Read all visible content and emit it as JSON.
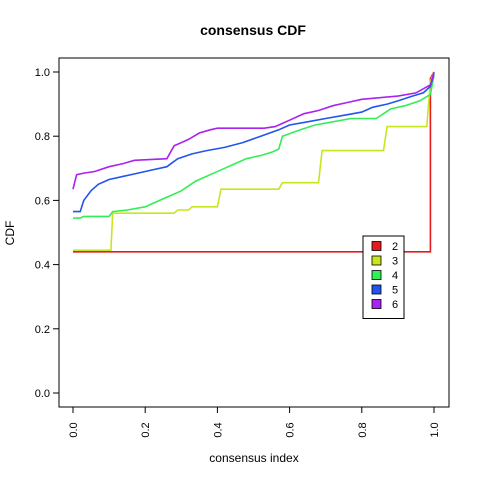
{
  "chart_data": {
    "type": "line",
    "title": "consensus CDF",
    "xlabel": "consensus index",
    "ylabel": "CDF",
    "xlim": [
      0,
      1
    ],
    "ylim": [
      0,
      1
    ],
    "x_ticks": [
      "0.0",
      "0.2",
      "0.4",
      "0.6",
      "0.8",
      "1.0"
    ],
    "y_ticks": [
      "0.0",
      "0.2",
      "0.4",
      "0.6",
      "0.8",
      "1.0"
    ],
    "grid": false,
    "legend_position": "center-right",
    "series": [
      {
        "name": "2",
        "color": "#E41A1C",
        "points": [
          [
            0.0,
            0.44
          ],
          [
            0.99,
            0.44
          ],
          [
            0.99,
            0.98
          ],
          [
            1.0,
            1.0
          ]
        ]
      },
      {
        "name": "3",
        "color": "#C8E61E",
        "points": [
          [
            0.0,
            0.445
          ],
          [
            0.105,
            0.445
          ],
          [
            0.11,
            0.56
          ],
          [
            0.28,
            0.56
          ],
          [
            0.29,
            0.57
          ],
          [
            0.32,
            0.57
          ],
          [
            0.33,
            0.58
          ],
          [
            0.4,
            0.58
          ],
          [
            0.41,
            0.635
          ],
          [
            0.57,
            0.635
          ],
          [
            0.58,
            0.655
          ],
          [
            0.68,
            0.655
          ],
          [
            0.69,
            0.755
          ],
          [
            0.86,
            0.755
          ],
          [
            0.87,
            0.83
          ],
          [
            0.98,
            0.83
          ],
          [
            0.99,
            0.97
          ],
          [
            1.0,
            1.0
          ]
        ]
      },
      {
        "name": "4",
        "color": "#33EE55",
        "points": [
          [
            0.0,
            0.545
          ],
          [
            0.02,
            0.545
          ],
          [
            0.03,
            0.55
          ],
          [
            0.1,
            0.55
          ],
          [
            0.11,
            0.565
          ],
          [
            0.15,
            0.57
          ],
          [
            0.2,
            0.58
          ],
          [
            0.24,
            0.6
          ],
          [
            0.27,
            0.615
          ],
          [
            0.3,
            0.63
          ],
          [
            0.34,
            0.66
          ],
          [
            0.38,
            0.68
          ],
          [
            0.42,
            0.7
          ],
          [
            0.45,
            0.715
          ],
          [
            0.48,
            0.73
          ],
          [
            0.52,
            0.74
          ],
          [
            0.55,
            0.75
          ],
          [
            0.57,
            0.76
          ],
          [
            0.58,
            0.8
          ],
          [
            0.63,
            0.82
          ],
          [
            0.67,
            0.835
          ],
          [
            0.72,
            0.845
          ],
          [
            0.77,
            0.855
          ],
          [
            0.84,
            0.855
          ],
          [
            0.86,
            0.87
          ],
          [
            0.88,
            0.885
          ],
          [
            0.92,
            0.895
          ],
          [
            0.96,
            0.91
          ],
          [
            0.99,
            0.93
          ],
          [
            1.0,
            0.99
          ]
        ]
      },
      {
        "name": "5",
        "color": "#2255EE",
        "points": [
          [
            0.0,
            0.565
          ],
          [
            0.02,
            0.565
          ],
          [
            0.03,
            0.6
          ],
          [
            0.05,
            0.63
          ],
          [
            0.07,
            0.65
          ],
          [
            0.1,
            0.665
          ],
          [
            0.14,
            0.675
          ],
          [
            0.18,
            0.685
          ],
          [
            0.22,
            0.695
          ],
          [
            0.26,
            0.705
          ],
          [
            0.29,
            0.73
          ],
          [
            0.33,
            0.745
          ],
          [
            0.37,
            0.755
          ],
          [
            0.42,
            0.765
          ],
          [
            0.47,
            0.78
          ],
          [
            0.52,
            0.8
          ],
          [
            0.57,
            0.82
          ],
          [
            0.6,
            0.835
          ],
          [
            0.65,
            0.845
          ],
          [
            0.7,
            0.855
          ],
          [
            0.75,
            0.865
          ],
          [
            0.8,
            0.875
          ],
          [
            0.83,
            0.89
          ],
          [
            0.87,
            0.9
          ],
          [
            0.9,
            0.91
          ],
          [
            0.94,
            0.925
          ],
          [
            0.97,
            0.935
          ],
          [
            0.99,
            0.955
          ],
          [
            1.0,
            0.995
          ]
        ]
      },
      {
        "name": "6",
        "color": "#AA22EE",
        "points": [
          [
            0.0,
            0.635
          ],
          [
            0.01,
            0.68
          ],
          [
            0.03,
            0.685
          ],
          [
            0.06,
            0.69
          ],
          [
            0.1,
            0.705
          ],
          [
            0.14,
            0.715
          ],
          [
            0.17,
            0.725
          ],
          [
            0.26,
            0.73
          ],
          [
            0.28,
            0.77
          ],
          [
            0.3,
            0.78
          ],
          [
            0.32,
            0.79
          ],
          [
            0.35,
            0.81
          ],
          [
            0.38,
            0.82
          ],
          [
            0.4,
            0.825
          ],
          [
            0.53,
            0.825
          ],
          [
            0.56,
            0.83
          ],
          [
            0.58,
            0.84
          ],
          [
            0.6,
            0.85
          ],
          [
            0.62,
            0.86
          ],
          [
            0.64,
            0.87
          ],
          [
            0.68,
            0.88
          ],
          [
            0.72,
            0.895
          ],
          [
            0.76,
            0.905
          ],
          [
            0.8,
            0.915
          ],
          [
            0.85,
            0.92
          ],
          [
            0.9,
            0.925
          ],
          [
            0.95,
            0.935
          ],
          [
            0.99,
            0.96
          ],
          [
            1.0,
            1.0
          ]
        ]
      }
    ]
  }
}
